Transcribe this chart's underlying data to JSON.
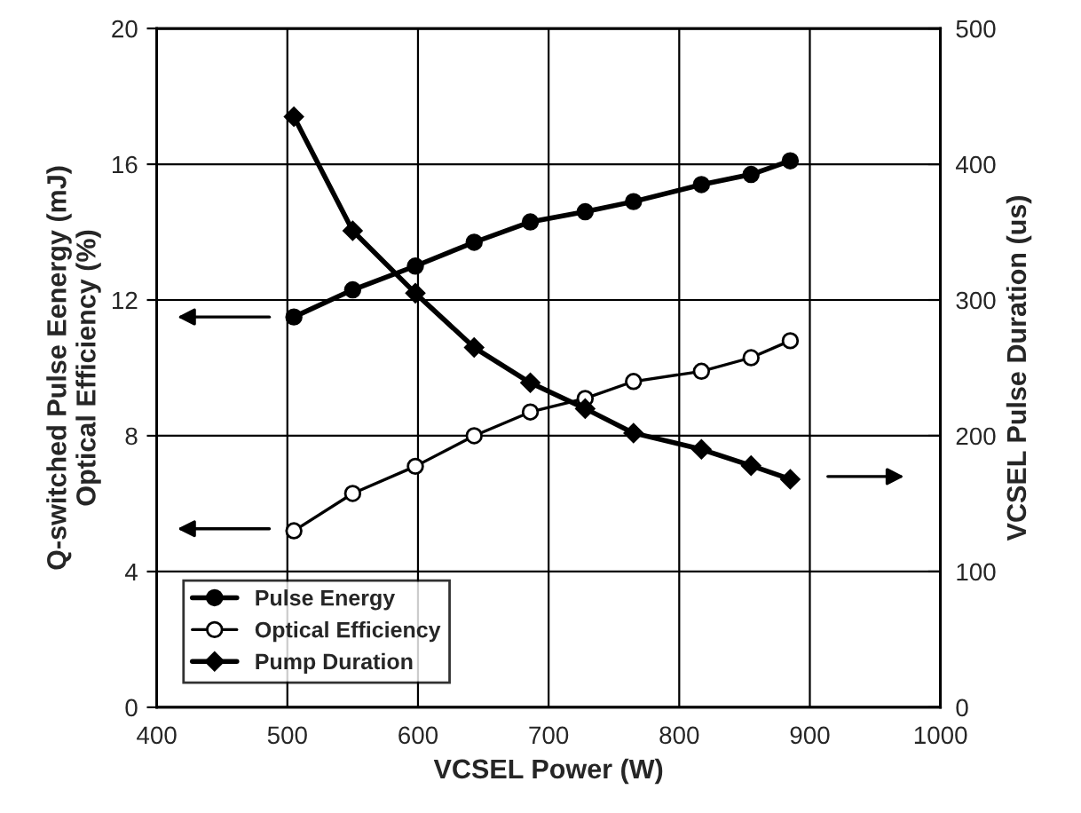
{
  "chart_data": {
    "type": "line",
    "xlabel": "VCSEL Power (W)",
    "ylabel": "Q-switched Pulse Eenergy (mJ)\nOptical Efficiency (%)",
    "y2label": "VCSEL Pulse Duration (us)",
    "xlim": [
      400,
      1000
    ],
    "xticks": [
      400,
      500,
      600,
      700,
      800,
      900,
      1000
    ],
    "ylim": [
      0,
      20
    ],
    "yticks": [
      0,
      4,
      8,
      12,
      16,
      20
    ],
    "y2lim": [
      0,
      500
    ],
    "y2ticks": [
      0,
      100,
      200,
      300,
      400,
      500
    ],
    "x": [
      505,
      550,
      598,
      643,
      686,
      728,
      765,
      817,
      855,
      885
    ],
    "grid": true,
    "legend": "bottom left",
    "series": [
      {
        "name": "Pulse Energy",
        "color": "#000000",
        "marker": "circle",
        "values": [
          11.5,
          12.3,
          13.0,
          13.7,
          14.3,
          14.6,
          14.9,
          15.4,
          15.7,
          16.1
        ]
      },
      {
        "name": "Optical Efficiency",
        "color": "#000000",
        "marker": "circle",
        "values": [
          5.2,
          6.3,
          7.1,
          8.0,
          8.7,
          9.1,
          9.6,
          9.9,
          10.3,
          10.8
        ]
      },
      {
        "name": "Pump Duration",
        "color": "#000000",
        "marker": "diamond",
        "axis": "y2",
        "values": [
          435,
          351,
          305,
          265,
          239,
          220,
          202,
          190,
          178,
          168
        ]
      }
    ]
  }
}
